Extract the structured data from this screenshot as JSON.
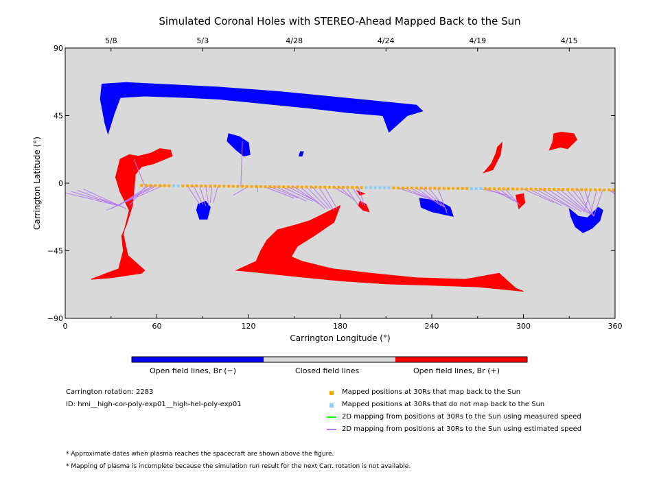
{
  "chart_data": {
    "type": "scatter",
    "title": "Simulated Coronal Holes with STEREO-Ahead Mapped Back to the Sun",
    "xlabel": "Carrington Longitude (°)",
    "ylabel": "Carrington Latitude (°)",
    "xlim": [
      0,
      360
    ],
    "ylim": [
      -90,
      90
    ],
    "x_ticks": [
      0,
      60,
      120,
      180,
      240,
      300,
      360
    ],
    "y_ticks": [
      90,
      45,
      0,
      -45,
      -90
    ],
    "x_tick_labels": [
      "0",
      "60",
      "120",
      "180",
      "240",
      "300",
      "360"
    ],
    "y_tick_labels": [
      "90",
      "45",
      "0",
      "−45",
      "−90"
    ],
    "top_axis_dates": [
      {
        "label": "5/8",
        "lon": 30
      },
      {
        "label": "5/3",
        "lon": 90
      },
      {
        "label": "4/28",
        "lon": 150
      },
      {
        "label": "4/24",
        "lon": 210
      },
      {
        "label": "4/19",
        "lon": 270
      },
      {
        "label": "4/15",
        "lon": 330
      }
    ],
    "background_color": "#d9d9d9",
    "coronal_holes": [
      {
        "polarity": "negative",
        "color": "#0000ff",
        "polygon": [
          [
            24,
            66
          ],
          [
            40,
            67
          ],
          [
            60,
            66
          ],
          [
            100,
            64
          ],
          [
            140,
            61
          ],
          [
            170,
            58
          ],
          [
            190,
            56
          ],
          [
            210,
            54
          ],
          [
            230,
            52
          ],
          [
            234,
            48
          ],
          [
            224,
            45
          ],
          [
            212,
            34
          ],
          [
            208,
            45
          ],
          [
            185,
            47
          ],
          [
            160,
            50
          ],
          [
            130,
            53
          ],
          [
            100,
            56
          ],
          [
            80,
            57
          ],
          [
            52,
            58
          ],
          [
            36,
            57
          ],
          [
            32,
            46
          ],
          [
            28,
            33
          ],
          [
            26,
            40
          ],
          [
            23,
            56
          ]
        ]
      },
      {
        "polarity": "negative",
        "color": "#0000ff",
        "polygon": [
          [
            107,
            33
          ],
          [
            114,
            31
          ],
          [
            120,
            27
          ],
          [
            121,
            19
          ],
          [
            117,
            18
          ],
          [
            112,
            22
          ],
          [
            106,
            28
          ]
        ]
      },
      {
        "polarity": "negative",
        "color": "#0000ff",
        "polygon": [
          [
            154,
            21
          ],
          [
            156,
            21
          ],
          [
            155,
            18
          ],
          [
            153,
            18
          ]
        ]
      },
      {
        "polarity": "negative",
        "color": "#0000ff",
        "polygon": [
          [
            87,
            -14
          ],
          [
            92,
            -12
          ],
          [
            95,
            -16
          ],
          [
            93,
            -24
          ],
          [
            88,
            -24
          ],
          [
            86,
            -18
          ]
        ]
      },
      {
        "polarity": "negative",
        "color": "#0000ff",
        "polygon": [
          [
            232,
            -10
          ],
          [
            245,
            -12
          ],
          [
            252,
            -16
          ],
          [
            254,
            -22
          ],
          [
            249,
            -21
          ],
          [
            240,
            -19
          ],
          [
            233,
            -16
          ]
        ]
      },
      {
        "polarity": "negative",
        "color": "#0000ff",
        "polygon": [
          [
            330,
            -17
          ],
          [
            336,
            -22
          ],
          [
            342,
            -23
          ],
          [
            349,
            -16
          ],
          [
            352,
            -18
          ],
          [
            350,
            -25
          ],
          [
            345,
            -30
          ],
          [
            339,
            -33
          ],
          [
            334,
            -29
          ],
          [
            331,
            -22
          ]
        ]
      },
      {
        "polarity": "positive",
        "color": "#ff0000",
        "polygon": [
          [
            36,
            16
          ],
          [
            42,
            19
          ],
          [
            48,
            18
          ],
          [
            56,
            20
          ],
          [
            62,
            23
          ],
          [
            69,
            22
          ],
          [
            70,
            18
          ],
          [
            58,
            13
          ],
          [
            50,
            11
          ],
          [
            46,
            6
          ],
          [
            44,
            -15
          ],
          [
            40,
            -28
          ],
          [
            37,
            -35
          ],
          [
            38,
            -45
          ],
          [
            35,
            -57
          ],
          [
            27,
            -60
          ],
          [
            17,
            -64
          ],
          [
            30,
            -63
          ],
          [
            50,
            -60
          ],
          [
            52,
            -58
          ],
          [
            41,
            -48
          ],
          [
            38,
            -34
          ],
          [
            42,
            -18
          ],
          [
            36,
            -6
          ],
          [
            33,
            4
          ]
        ]
      },
      {
        "polarity": "positive",
        "color": "#ff0000",
        "polygon": [
          [
            112,
            -58
          ],
          [
            122,
            -59
          ],
          [
            150,
            -62
          ],
          [
            180,
            -65
          ],
          [
            210,
            -67
          ],
          [
            240,
            -68
          ],
          [
            270,
            -69
          ],
          [
            300,
            -72
          ],
          [
            295,
            -70
          ],
          [
            284,
            -60
          ],
          [
            262,
            -64
          ],
          [
            230,
            -63
          ],
          [
            200,
            -60
          ],
          [
            175,
            -57
          ],
          [
            155,
            -52
          ],
          [
            148,
            -49
          ],
          [
            152,
            -42
          ],
          [
            163,
            -35
          ],
          [
            176,
            -26
          ],
          [
            180,
            -15
          ],
          [
            172,
            -19
          ],
          [
            160,
            -25
          ],
          [
            150,
            -28
          ],
          [
            139,
            -31
          ],
          [
            132,
            -38
          ],
          [
            128,
            -45
          ],
          [
            125,
            -52
          ]
        ]
      },
      {
        "polarity": "positive",
        "color": "#ff0000",
        "polygon": [
          [
            193,
            -12
          ],
          [
            197,
            -14
          ],
          [
            199,
            -19
          ],
          [
            195,
            -18
          ],
          [
            192,
            -15
          ]
        ]
      },
      {
        "polarity": "positive",
        "color": "#ff0000",
        "polygon": [
          [
            283,
            24
          ],
          [
            286,
            27
          ],
          [
            285,
            19
          ],
          [
            280,
            9
          ],
          [
            274,
            7
          ],
          [
            279,
            13
          ],
          [
            282,
            20
          ]
        ]
      },
      {
        "polarity": "positive",
        "color": "#ff0000",
        "polygon": [
          [
            295,
            -8
          ],
          [
            300,
            -7
          ],
          [
            301,
            -13
          ],
          [
            297,
            -17
          ]
        ]
      },
      {
        "polarity": "positive",
        "color": "#ff0000",
        "polygon": [
          [
            317,
            22
          ],
          [
            324,
            24
          ],
          [
            329,
            23
          ],
          [
            335,
            29
          ],
          [
            333,
            33
          ],
          [
            325,
            34
          ],
          [
            320,
            33
          ],
          [
            319,
            27
          ]
        ]
      },
      {
        "polarity": "positive",
        "color": "#ff0000",
        "polygon": [
          [
            191,
            -5
          ],
          [
            193,
            -8
          ],
          [
            196,
            -7
          ]
        ]
      }
    ],
    "mapped_positions_30Rs": {
      "longitudes_step": 3,
      "start_lon": 50,
      "end_lon": 359,
      "latitude_start": -1.5,
      "latitude_end": -4.5,
      "do_not_map_back_ranges": [
        [
          70,
          76
        ],
        [
          196,
          214
        ],
        [
          266,
          272
        ]
      ]
    },
    "field_line_mappings_estimated": [
      [
        52,
        45,
        16
      ],
      [
        53,
        42,
        -15
      ],
      [
        55,
        35,
        -15
      ],
      [
        58,
        32,
        -16
      ],
      [
        60,
        30,
        -17
      ],
      [
        64,
        27,
        -18
      ],
      [
        80,
        88,
        -14
      ],
      [
        84,
        90,
        -14
      ],
      [
        88,
        92,
        -15
      ],
      [
        92,
        94,
        -15
      ],
      [
        96,
        95,
        -13
      ],
      [
        100,
        97,
        -13
      ],
      [
        115,
        116,
        28
      ],
      [
        120,
        110,
        -8
      ],
      [
        126,
        126,
        -6
      ],
      [
        130,
        150,
        -10
      ],
      [
        134,
        153,
        -10
      ],
      [
        138,
        158,
        -12
      ],
      [
        142,
        162,
        -12
      ],
      [
        146,
        166,
        -13
      ],
      [
        150,
        168,
        -15
      ],
      [
        154,
        170,
        -17
      ],
      [
        158,
        172,
        -17
      ],
      [
        162,
        174,
        -17
      ],
      [
        166,
        176,
        -18
      ],
      [
        170,
        178,
        -17
      ],
      [
        176,
        188,
        -10
      ],
      [
        180,
        190,
        -12
      ],
      [
        184,
        192,
        -15
      ],
      [
        188,
        195,
        -14
      ],
      [
        192,
        196,
        -15
      ],
      [
        218,
        240,
        -11
      ],
      [
        222,
        242,
        -12
      ],
      [
        226,
        244,
        -13
      ],
      [
        230,
        246,
        -15
      ],
      [
        234,
        248,
        -16
      ],
      [
        238,
        250,
        -18
      ],
      [
        244,
        250,
        -20
      ],
      [
        272,
        290,
        -8
      ],
      [
        276,
        292,
        -10
      ],
      [
        280,
        294,
        -12
      ],
      [
        284,
        296,
        -13
      ],
      [
        288,
        298,
        -15
      ],
      [
        300,
        320,
        -13
      ],
      [
        304,
        325,
        -15
      ],
      [
        308,
        330,
        -16
      ],
      [
        312,
        334,
        -18
      ],
      [
        316,
        338,
        -19
      ],
      [
        320,
        340,
        -19
      ],
      [
        324,
        342,
        -20
      ],
      [
        328,
        344,
        -21
      ],
      [
        332,
        346,
        -22
      ],
      [
        336,
        344,
        -21
      ],
      [
        340,
        346,
        -22
      ],
      [
        344,
        340,
        -18
      ],
      [
        348,
        344,
        -20
      ],
      [
        352,
        346,
        -22
      ],
      [
        356,
        360,
        -6
      ],
      [
        0,
        0,
        -6
      ],
      [
        0,
        35,
        -15
      ],
      [
        4,
        36,
        -15
      ],
      [
        8,
        38,
        -16
      ],
      [
        12,
        40,
        -17
      ],
      [
        356,
        361,
        -8
      ]
    ],
    "field_line_mappings_measured": [],
    "colorbar": {
      "segments": [
        {
          "label": "Open field lines, Br (−)",
          "color": "#0000ff"
        },
        {
          "label": "Closed field lines",
          "color": "#d9d9d9"
        },
        {
          "label": "Open field lines, Br (+)",
          "color": "#ff0000"
        }
      ]
    },
    "colors": {
      "mapped_back": "#ffa500",
      "not_mapped_back": "#87cefa",
      "measured_speed": "#00ff00",
      "estimated_speed": "#b678f0",
      "background": "#d9d9d9",
      "negative_polarity": "#0000ff",
      "positive_polarity": "#ff0000"
    }
  },
  "info": {
    "carrington_rotation": "Carrington rotation: 2283",
    "run_id": "ID: hmi__high-cor-poly-exp01__high-hel-poly-exp01"
  },
  "legend": {
    "mapped_back": "Mapped positions at 30Rs that map back to the Sun",
    "not_mapped_back": "Mapped positions at 30Rs that do not map back to the Sun",
    "measured_speed": "2D mapping from positions at 30Rs to the Sun using measured speed",
    "estimated_speed": "2D mapping from positions at 30Rs to the Sun using estimated speed"
  },
  "notes": {
    "note1": "* Approximate dates when plasma reaches the spacecraft are shown above the figure.",
    "note2": "* Mapping of plasma is incomplete because the simulation run result for the next Carr. rotation is not available."
  }
}
